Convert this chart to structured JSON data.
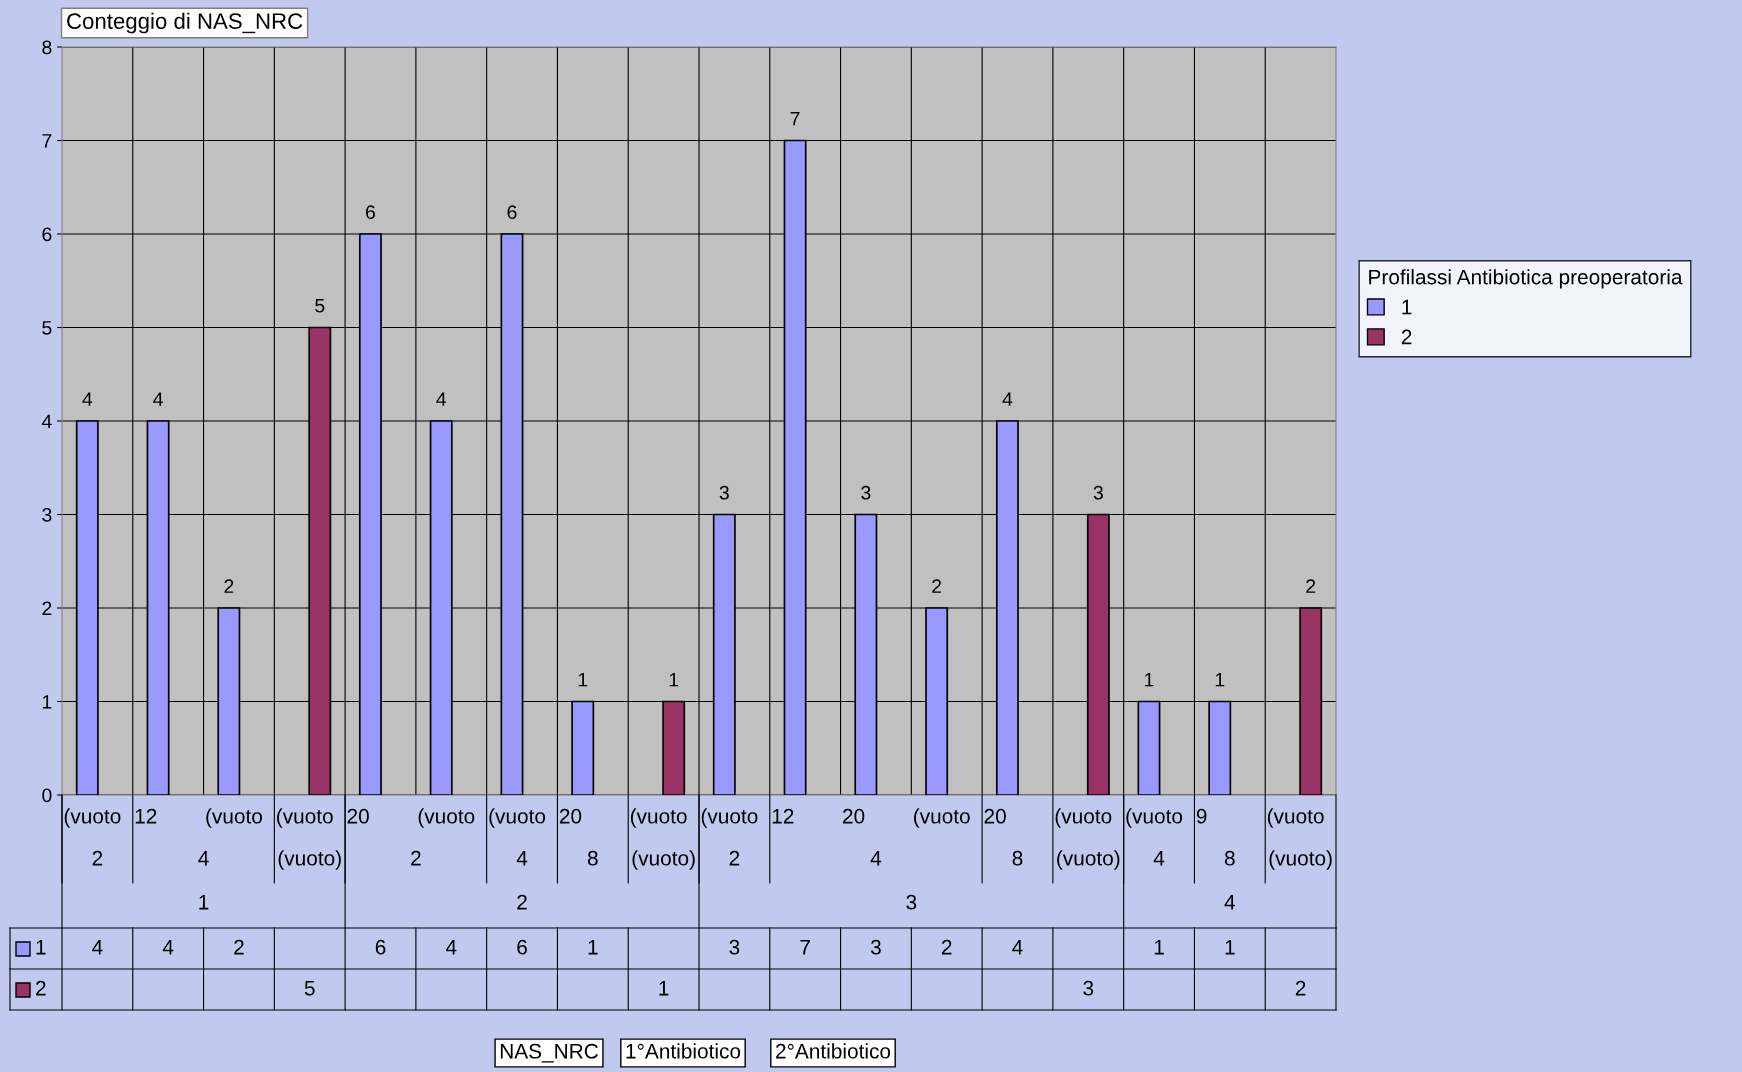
{
  "chart_data": {
    "type": "bar",
    "title": "Conteggio di NAS_NRC",
    "legend_title": "Profilassi Antibiotica preoperatoria",
    "categories": [
      "(vuoto",
      "12",
      "(vuoto",
      "(vuoto",
      "20",
      "(vuoto",
      "(vuoto",
      "20",
      "(vuoto",
      "(vuoto",
      "12",
      "20",
      "(vuoto",
      "20",
      "(vuoto",
      "(vuoto",
      "9",
      "(vuoto"
    ],
    "series": [
      {
        "name": "1",
        "color": "#9999ff",
        "values": [
          4,
          4,
          2,
          null,
          6,
          4,
          6,
          1,
          null,
          3,
          7,
          3,
          2,
          4,
          null,
          1,
          1,
          null
        ],
        "value_labels": [
          "4",
          "4",
          "2",
          null,
          "6",
          "4",
          "6",
          "1",
          null,
          "3",
          "7",
          "3",
          "2",
          "4",
          null,
          "1",
          "1",
          null
        ]
      },
      {
        "name": "2",
        "color": "#993366",
        "values": [
          null,
          null,
          null,
          5,
          null,
          null,
          null,
          null,
          1,
          null,
          null,
          null,
          null,
          null,
          3,
          null,
          null,
          2
        ],
        "value_labels": [
          null,
          null,
          null,
          "5",
          null,
          null,
          null,
          null,
          "1",
          null,
          null,
          null,
          null,
          null,
          "3",
          null,
          null,
          "2"
        ]
      }
    ],
    "ylim": [
      0,
      8
    ],
    "yticks": [
      0,
      1,
      2,
      3,
      4,
      5,
      6,
      7,
      8
    ],
    "grid": true,
    "legend": "right",
    "annotations": [
      "2",
      "4",
      "(vuoto)",
      "2",
      "4",
      "8",
      "(vuoto)",
      "2",
      "4",
      "8",
      "(vuoto)",
      "4",
      "8",
      "(vuoto)",
      "1",
      "2",
      "3",
      "4",
      "NAS_NRC",
      "1°Antibiotico",
      "2°Antibiotico"
    ]
  }
}
